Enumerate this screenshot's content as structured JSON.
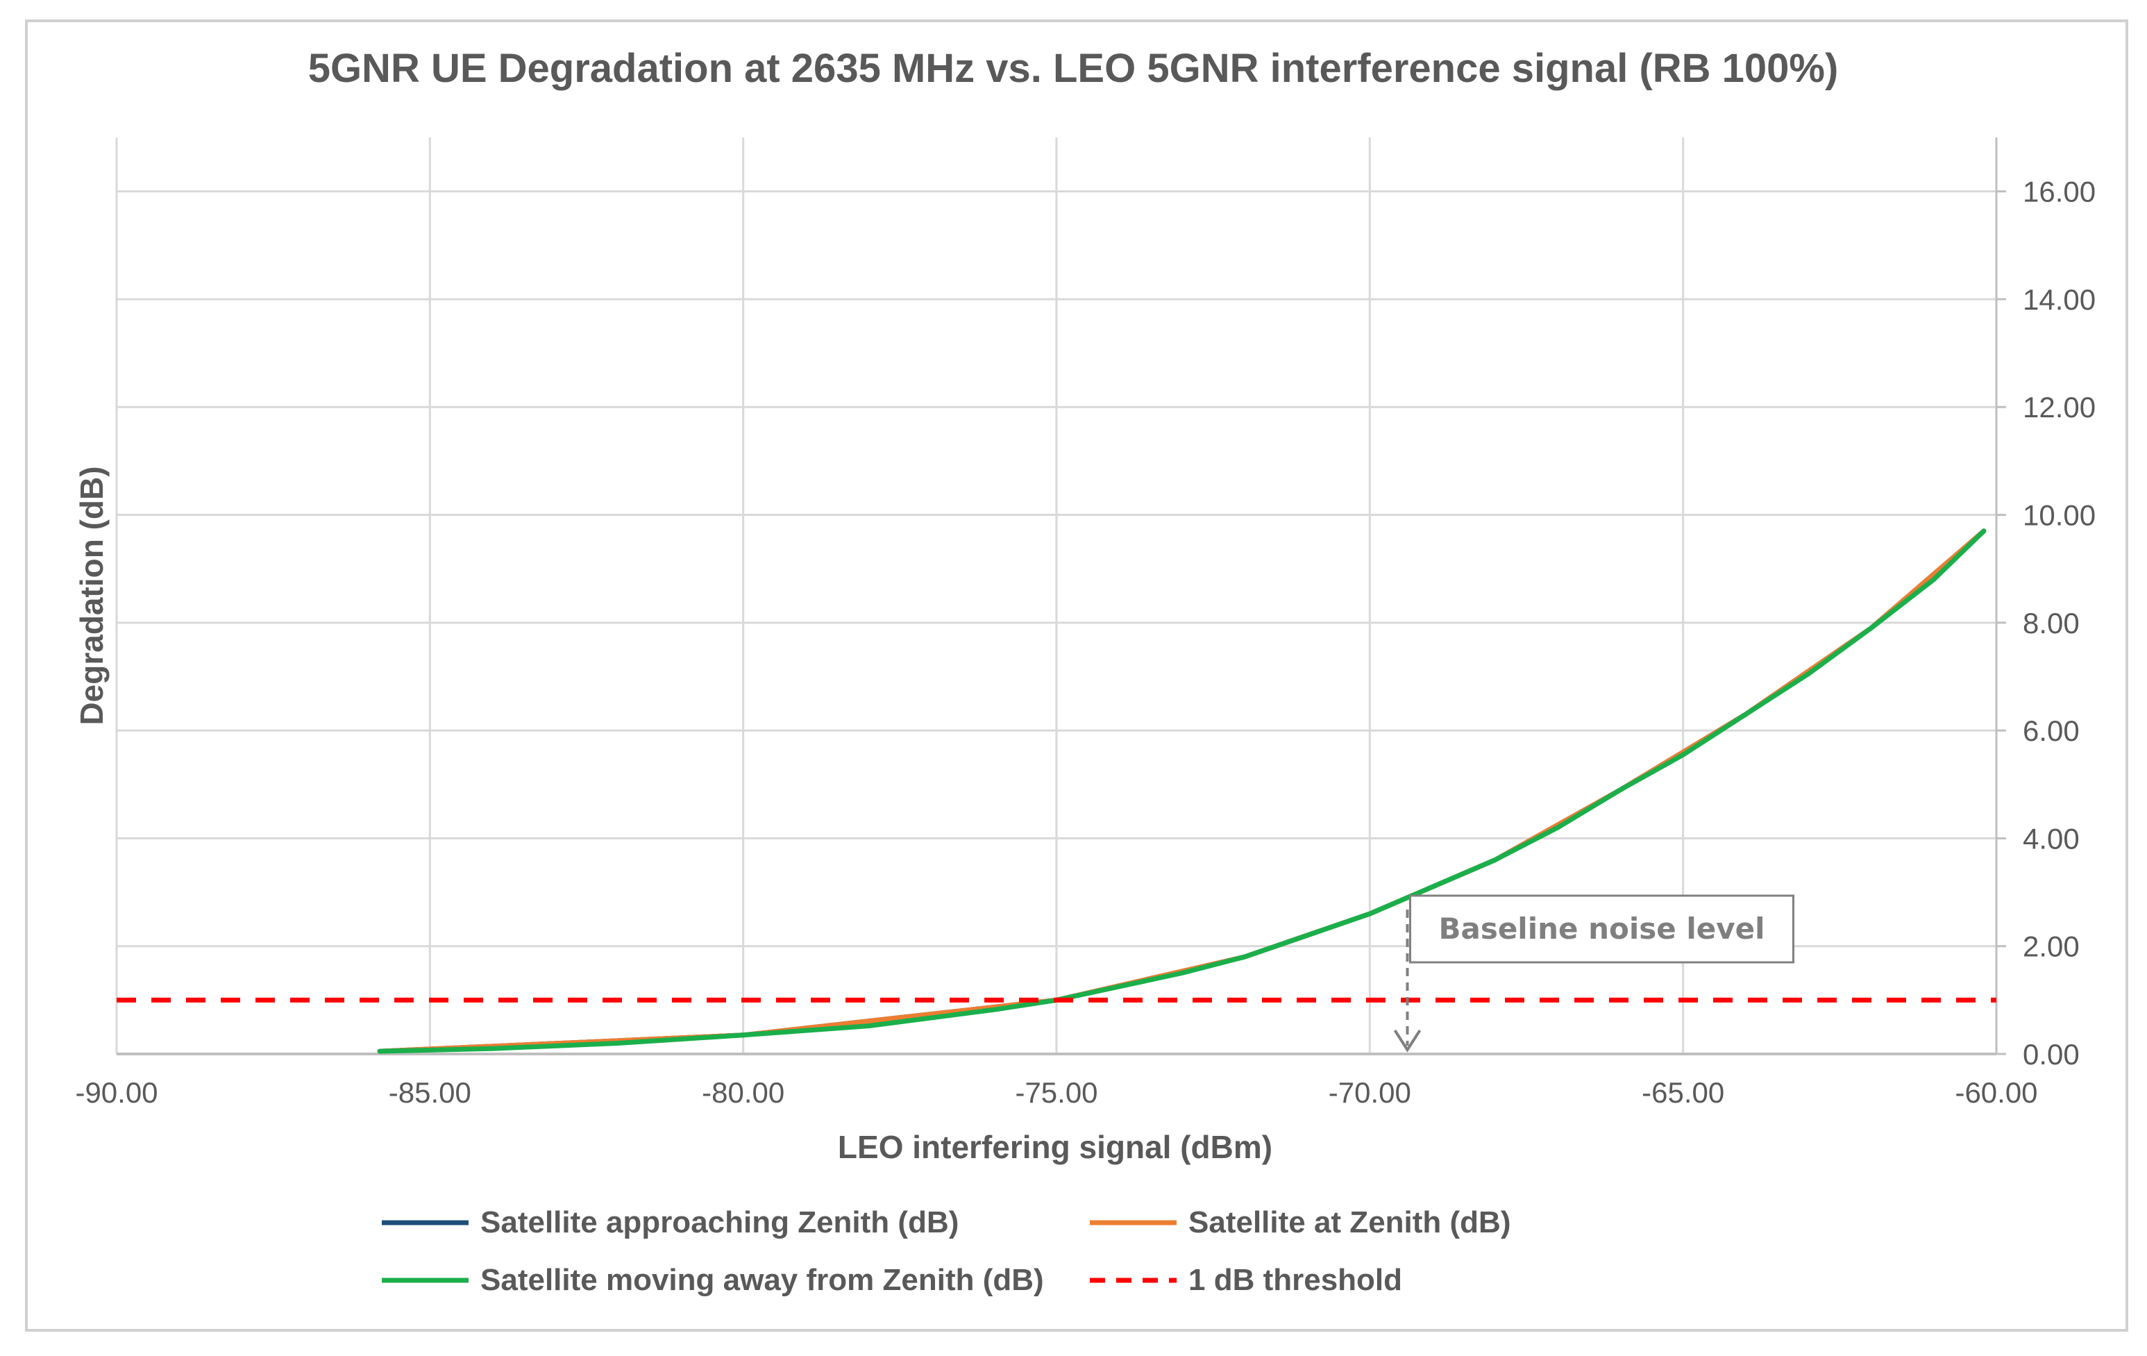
{
  "chart_data": {
    "type": "line",
    "title": "5GNR UE Degradation at 2635 MHz vs. LEO 5GNR interference signal (RB 100%)",
    "xlabel": "LEO interfering signal (dBm)",
    "ylabel": "Degradation (dB)",
    "xlim": [
      -90,
      -60
    ],
    "ylim": [
      0,
      17
    ],
    "x_ticks": [
      "-90.00",
      "-85.00",
      "-80.00",
      "-75.00",
      "-70.00",
      "-65.00",
      "-60.00"
    ],
    "y_ticks": [
      "0.00",
      "2.00",
      "4.00",
      "6.00",
      "8.00",
      "10.00",
      "12.00",
      "14.00",
      "16.00"
    ],
    "y_axis_side": "right",
    "grid": true,
    "legend_position": "bottom",
    "series": [
      {
        "name": "Satellite approaching Zenith (dB)",
        "color": "#1f4e79",
        "style": "solid",
        "x": [
          -85.8,
          -80,
          -75,
          -72,
          -70,
          -68,
          -66,
          -64,
          -62,
          -60.2
        ],
        "y": [
          0.05,
          0.35,
          1.0,
          1.8,
          2.6,
          3.6,
          4.9,
          6.3,
          7.9,
          9.7
        ]
      },
      {
        "name": "Satellite at Zenith (dB)",
        "color": "#ed7d31",
        "style": "solid",
        "x": [
          -85.8,
          -80,
          -75,
          -72,
          -70,
          -68,
          -66,
          -64,
          -62,
          -60.2
        ],
        "y": [
          0.05,
          0.35,
          1.0,
          1.8,
          2.6,
          3.6,
          4.9,
          6.3,
          7.9,
          9.7
        ]
      },
      {
        "name": "Satellite moving away from Zenith (dB)",
        "color": "#1aaf4b",
        "style": "solid",
        "x": [
          -85.8,
          -84,
          -82,
          -80,
          -78,
          -76,
          -75,
          -74,
          -73,
          -72,
          -71,
          -70,
          -69,
          -68,
          -67,
          -66,
          -65,
          -64,
          -63,
          -62,
          -61,
          -60.2
        ],
        "y": [
          0.05,
          0.1,
          0.2,
          0.35,
          0.52,
          0.82,
          1.0,
          1.25,
          1.5,
          1.8,
          2.2,
          2.6,
          3.1,
          3.6,
          4.2,
          4.9,
          5.55,
          6.3,
          7.05,
          7.9,
          8.8,
          9.7
        ]
      },
      {
        "name": "1 dB threshold",
        "color": "#ff0000",
        "style": "dashed",
        "x": [
          -90,
          -60
        ],
        "y": [
          1,
          1
        ]
      }
    ],
    "annotations": [
      {
        "text": "Baseline noise level",
        "x": -69.4,
        "y": 0
      }
    ]
  }
}
